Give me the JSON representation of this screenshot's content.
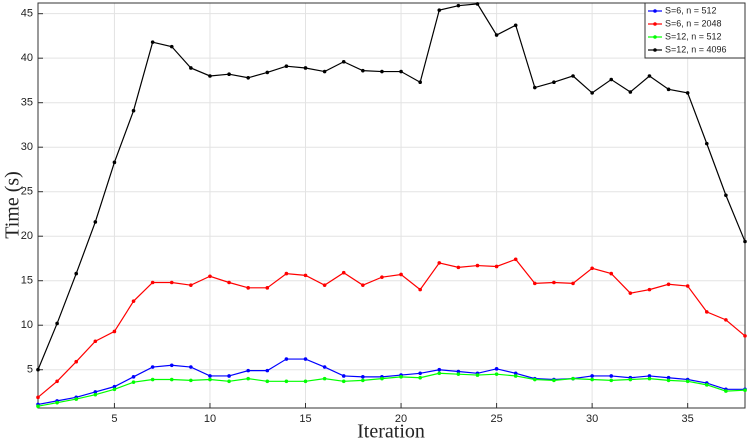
{
  "chart_data": {
    "type": "line",
    "x_label": "Iteration",
    "y_label": "Time (s)",
    "x": [
      1,
      2,
      3,
      4,
      5,
      6,
      7,
      8,
      9,
      10,
      11,
      12,
      13,
      14,
      15,
      16,
      17,
      18,
      19,
      20,
      21,
      22,
      23,
      24,
      25,
      26,
      27,
      28,
      29,
      30,
      31,
      32,
      33,
      34,
      35,
      36,
      37,
      38
    ],
    "series": [
      {
        "name": "S=6, n = 512",
        "color": "#0000ff",
        "values": [
          1.1,
          1.5,
          1.9,
          2.5,
          3.1,
          4.2,
          5.3,
          5.5,
          5.3,
          4.3,
          4.3,
          4.9,
          4.9,
          6.2,
          6.2,
          5.3,
          4.3,
          4.2,
          4.2,
          4.4,
          4.6,
          5.0,
          4.8,
          4.6,
          5.1,
          4.6,
          4.0,
          3.9,
          4.0,
          4.3,
          4.3,
          4.1,
          4.3,
          4.1,
          3.9,
          3.5,
          2.8,
          2.8
        ]
      },
      {
        "name": "S=6, n = 2048",
        "color": "#ff0000",
        "values": [
          1.9,
          3.7,
          5.9,
          8.2,
          9.3,
          12.7,
          14.8,
          14.8,
          14.5,
          15.5,
          14.8,
          14.2,
          14.2,
          15.8,
          15.6,
          14.5,
          15.9,
          14.5,
          15.4,
          15.7,
          14.0,
          17.0,
          16.5,
          16.7,
          16.6,
          17.4,
          14.7,
          14.8,
          14.7,
          16.4,
          15.8,
          13.6,
          14.0,
          14.6,
          14.4,
          11.5,
          10.6,
          8.8
        ]
      },
      {
        "name": "S=12, n = 512",
        "color": "#00ff00",
        "values": [
          0.9,
          1.3,
          1.7,
          2.2,
          2.8,
          3.6,
          3.9,
          3.9,
          3.8,
          3.9,
          3.7,
          4.0,
          3.7,
          3.7,
          3.7,
          4.0,
          3.7,
          3.8,
          4.0,
          4.2,
          4.1,
          4.6,
          4.5,
          4.4,
          4.5,
          4.3,
          3.9,
          3.8,
          4.0,
          3.9,
          3.8,
          3.9,
          4.0,
          3.8,
          3.7,
          3.3,
          2.6,
          2.7
        ]
      },
      {
        "name": "S=12, n = 4096",
        "color": "#000000",
        "values": [
          5.0,
          10.2,
          15.8,
          21.6,
          28.3,
          34.1,
          41.8,
          41.3,
          38.9,
          38.0,
          38.2,
          37.8,
          38.4,
          39.1,
          38.9,
          38.5,
          39.6,
          38.6,
          38.5,
          38.5,
          37.3,
          45.4,
          45.9,
          46.1,
          42.6,
          43.7,
          36.7,
          37.3,
          38.0,
          36.1,
          37.6,
          36.2,
          38.0,
          36.5,
          36.1,
          30.4,
          24.6,
          19.4
        ]
      }
    ],
    "xlim": [
      1,
      38
    ],
    "ylim": [
      0.7,
      46.2
    ],
    "xticks": [
      5,
      10,
      15,
      20,
      25,
      30,
      35
    ],
    "yticks": [
      5,
      10,
      15,
      20,
      25,
      30,
      35,
      40,
      45
    ],
    "grid": true,
    "legend": "upper-right"
  }
}
